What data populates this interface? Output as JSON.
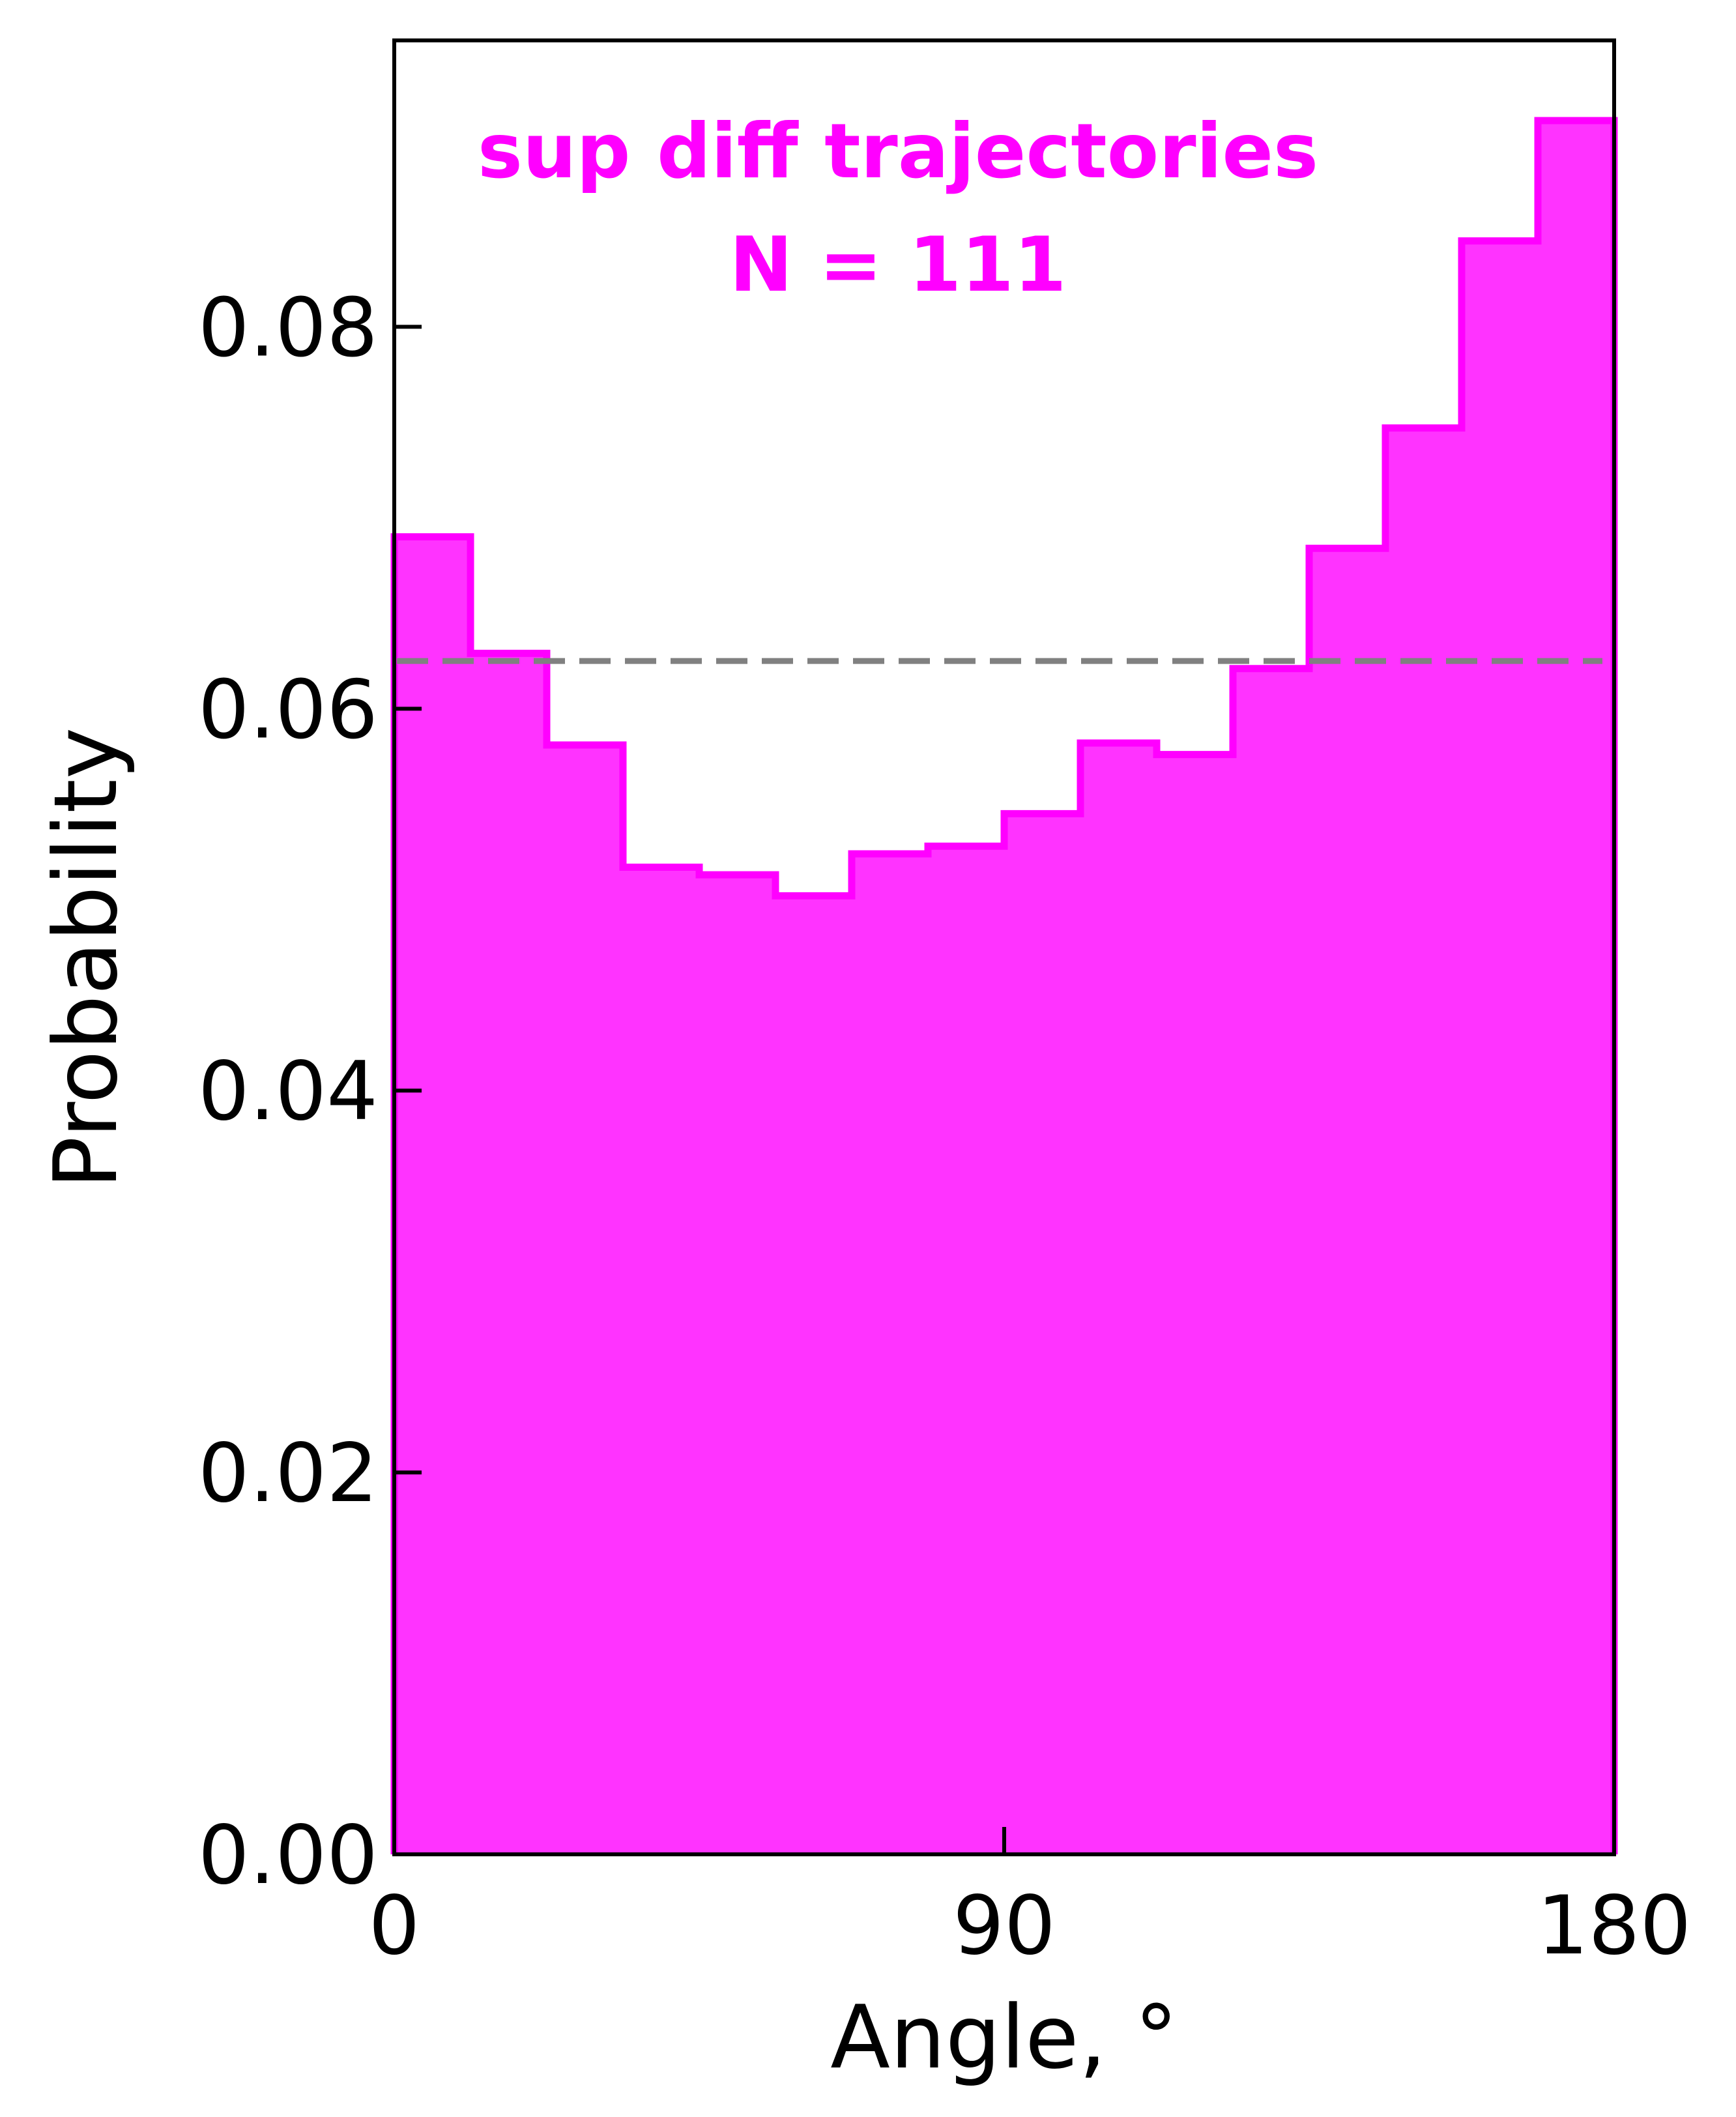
{
  "chart_data": {
    "type": "histogram",
    "xlabel": "Angle, °",
    "ylabel": "Probability",
    "xlim": [
      0,
      180
    ],
    "ylim": [
      0,
      0.095
    ],
    "xticks": [
      0,
      90,
      180
    ],
    "xtick_labels": [
      "0",
      "90",
      "180"
    ],
    "yticks": [
      0.0,
      0.02,
      0.04,
      0.06,
      0.08
    ],
    "ytick_labels": [
      "0.00",
      "0.02",
      "0.04",
      "0.06",
      "0.08"
    ],
    "bin_edges": [
      0,
      11.25,
      22.5,
      33.75,
      45,
      56.25,
      67.5,
      78.75,
      90,
      101.25,
      112.5,
      123.75,
      135,
      146.25,
      157.5,
      168.75,
      180
    ],
    "values": [
      0.069,
      0.0629,
      0.0581,
      0.0517,
      0.0513,
      0.0502,
      0.0524,
      0.0528,
      0.0545,
      0.0582,
      0.0576,
      0.0621,
      0.0684,
      0.0747,
      0.0845,
      0.0908
    ],
    "reference_line": {
      "y": 0.0625,
      "style": "dashed"
    },
    "annotations": [
      "sup diff trajectories",
      "N = 111"
    ],
    "grid": false,
    "colors": {
      "fill": "#ff33ff",
      "edge": "#ff00ff",
      "reference": "#808080",
      "annotation": "#ff00ff"
    }
  }
}
